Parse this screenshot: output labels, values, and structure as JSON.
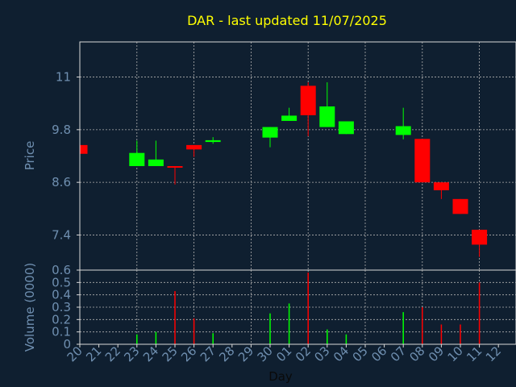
{
  "title": "DAR - last updated 11/07/2025",
  "colors": {
    "up": "#00ff00",
    "down": "#ff0000",
    "text": "#6f8fb0",
    "title": "#ffff00",
    "bg": "#0f1f30"
  },
  "chart_data": [
    {
      "type": "candlestick",
      "ylabel": "Price",
      "ylim": [
        6.6,
        11.8
      ],
      "yticks": [
        "7.4",
        "8.6",
        "9.8",
        "11"
      ],
      "ytick_values": [
        7.4,
        8.6,
        9.8,
        11
      ],
      "grid": true,
      "candles": [
        {
          "x": 0,
          "open": 9.45,
          "close": 9.25,
          "high": 9.45,
          "low": 9.25
        },
        {
          "x": 3,
          "open": 8.97,
          "close": 9.27,
          "high": 9.55,
          "low": 8.97
        },
        {
          "x": 4,
          "open": 8.97,
          "close": 9.12,
          "high": 9.55,
          "low": 8.97
        },
        {
          "x": 5,
          "open": 8.97,
          "close": 8.94,
          "high": 8.97,
          "low": 8.55
        },
        {
          "x": 6,
          "open": 9.45,
          "close": 9.35,
          "high": 9.45,
          "low": 9.18
        },
        {
          "x": 7,
          "open": 9.52,
          "close": 9.56,
          "high": 9.63,
          "low": 9.48
        },
        {
          "x": 10,
          "open": 9.62,
          "close": 9.86,
          "high": 9.86,
          "low": 9.4
        },
        {
          "x": 11,
          "open": 10.0,
          "close": 10.12,
          "high": 10.3,
          "low": 10.0
        },
        {
          "x": 12,
          "open": 10.8,
          "close": 10.13,
          "high": 10.88,
          "low": 9.65
        },
        {
          "x": 13,
          "open": 9.86,
          "close": 10.33,
          "high": 10.88,
          "low": 9.86
        },
        {
          "x": 14,
          "open": 9.7,
          "close": 9.99,
          "high": 9.99,
          "low": 9.7
        },
        {
          "x": 17,
          "open": 9.68,
          "close": 9.88,
          "high": 10.3,
          "low": 9.58
        },
        {
          "x": 18,
          "open": 9.59,
          "close": 8.6,
          "high": 9.59,
          "low": 8.6
        },
        {
          "x": 19,
          "open": 8.6,
          "close": 8.42,
          "high": 8.6,
          "low": 8.22
        },
        {
          "x": 20,
          "open": 8.22,
          "close": 7.88,
          "high": 8.22,
          "low": 7.88
        },
        {
          "x": 21,
          "open": 7.52,
          "close": 7.18,
          "high": 7.52,
          "low": 6.9
        }
      ]
    },
    {
      "type": "bar",
      "ylabel": "Volume (0000)",
      "xlabel": "Day",
      "ylim": [
        0,
        0.6
      ],
      "yticks": [
        "0",
        "0.1",
        "0.2",
        "0.3",
        "0.4",
        "0.5",
        "0.6"
      ],
      "ytick_values": [
        0,
        0.1,
        0.2,
        0.3,
        0.4,
        0.5,
        0.6
      ],
      "categories": [
        "20",
        "21",
        "22",
        "23",
        "24",
        "25",
        "26",
        "27",
        "28",
        "29",
        "30",
        "01",
        "02",
        "03",
        "04",
        "05",
        "06",
        "07",
        "08",
        "09",
        "10",
        "11",
        "12"
      ],
      "grid": true,
      "bars": [
        {
          "x": 3,
          "value": 0.08,
          "dir": "up"
        },
        {
          "x": 4,
          "value": 0.1,
          "dir": "up"
        },
        {
          "x": 5,
          "value": 0.43,
          "dir": "down"
        },
        {
          "x": 6,
          "value": 0.21,
          "dir": "down"
        },
        {
          "x": 7,
          "value": 0.09,
          "dir": "up"
        },
        {
          "x": 10,
          "value": 0.25,
          "dir": "up"
        },
        {
          "x": 11,
          "value": 0.33,
          "dir": "up"
        },
        {
          "x": 12,
          "value": 0.58,
          "dir": "down"
        },
        {
          "x": 13,
          "value": 0.12,
          "dir": "up"
        },
        {
          "x": 14,
          "value": 0.08,
          "dir": "up"
        },
        {
          "x": 17,
          "value": 0.26,
          "dir": "up"
        },
        {
          "x": 18,
          "value": 0.3,
          "dir": "down"
        },
        {
          "x": 19,
          "value": 0.16,
          "dir": "down"
        },
        {
          "x": 20,
          "value": 0.16,
          "dir": "down"
        },
        {
          "x": 21,
          "value": 0.5,
          "dir": "down"
        }
      ]
    }
  ]
}
